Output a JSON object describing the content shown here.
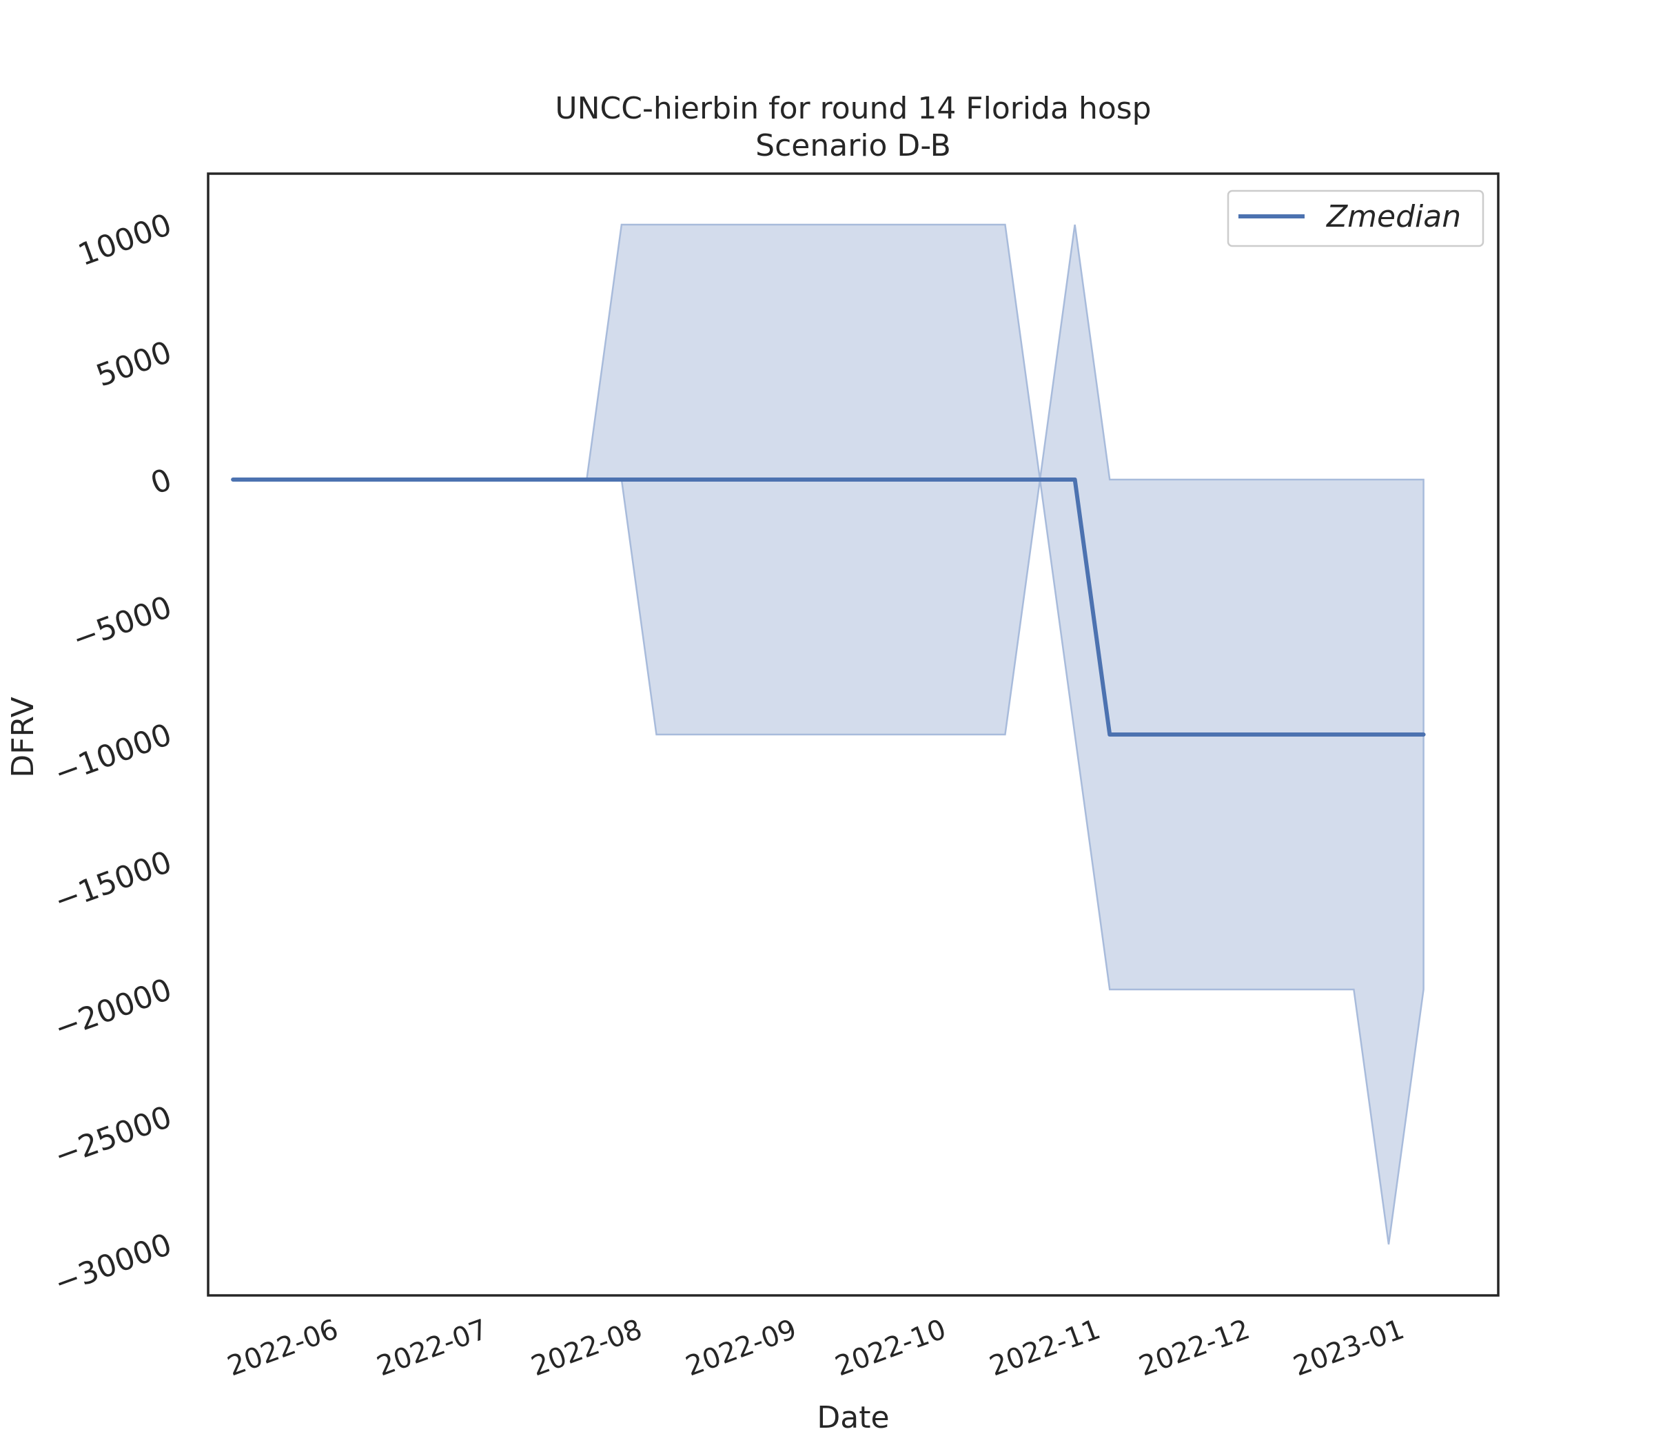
{
  "chart_data": {
    "type": "line",
    "title": "UNCC-hierbin for round 14 Florida hosp",
    "subtitle": "Scenario D-B",
    "xlabel": "Date",
    "ylabel": "DFRV",
    "xlim": [
      "2022-05-08",
      "2023-01-22"
    ],
    "ylim": [
      -32000,
      12000
    ],
    "x_ticks": [
      "2022-06",
      "2022-07",
      "2022-08",
      "2022-09",
      "2022-10",
      "2022-11",
      "2022-12",
      "2023-01"
    ],
    "y_ticks": [
      10000,
      5000,
      0,
      -5000,
      -10000,
      -15000,
      -20000,
      -25000,
      -30000
    ],
    "y_tick_labels": [
      "10000",
      "5000",
      "0",
      "−5000",
      "−10000",
      "−15000",
      "−20000",
      "−25000",
      "−30000"
    ],
    "grid": false,
    "legend_position": "top-right",
    "colors": {
      "line": "#4c72b0",
      "band": "#b8c7e0",
      "band_edge": "#a8bbdb"
    },
    "series": [
      {
        "name": "Zmedian",
        "x": [
          "2022-05-13",
          "2022-07-23",
          "2022-07-30",
          "2022-08-06",
          "2022-10-15",
          "2022-10-22",
          "2022-10-29",
          "2022-11-05",
          "2022-12-24",
          "2022-12-31",
          "2023-01-07"
        ],
        "values": [
          0,
          0,
          0,
          0,
          0,
          0,
          0,
          -10000,
          -10000,
          -10000,
          -10000
        ]
      }
    ],
    "band": {
      "x": [
        "2022-05-13",
        "2022-07-23",
        "2022-07-30",
        "2022-08-06",
        "2022-10-15",
        "2022-10-22",
        "2022-10-29",
        "2022-11-05",
        "2022-12-24",
        "2022-12-31",
        "2023-01-07"
      ],
      "lower": [
        0,
        0,
        0,
        -10000,
        -10000,
        0,
        -10000,
        -20000,
        -20000,
        -30000,
        -20000
      ],
      "upper": [
        0,
        0,
        10000,
        10000,
        10000,
        0,
        10000,
        0,
        0,
        0,
        0
      ]
    }
  }
}
